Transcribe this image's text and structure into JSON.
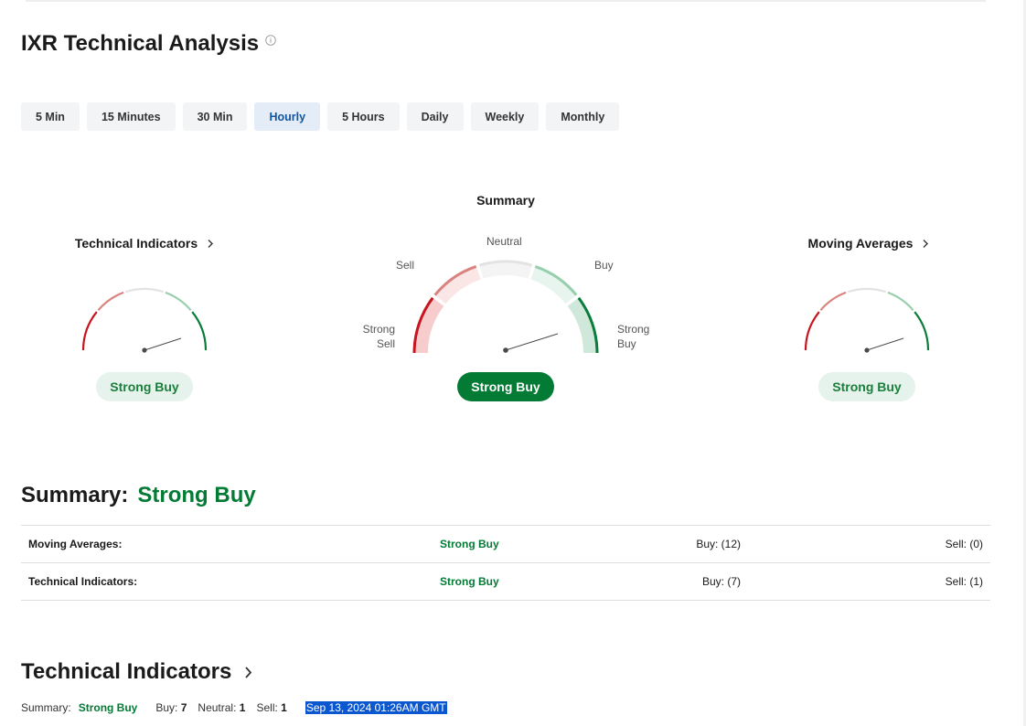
{
  "header": {
    "title": "IXR Technical Analysis",
    "info_icon": "info-icon"
  },
  "timeframes": [
    {
      "label": "5 Min",
      "active": false
    },
    {
      "label": "15 Minutes",
      "active": false
    },
    {
      "label": "30 Min",
      "active": false
    },
    {
      "label": "Hourly",
      "active": true
    },
    {
      "label": "5 Hours",
      "active": false
    },
    {
      "label": "Daily",
      "active": false
    },
    {
      "label": "Weekly",
      "active": false
    },
    {
      "label": "Monthly",
      "active": false
    }
  ],
  "gauges": {
    "technical_indicators": {
      "title": "Technical Indicators",
      "rating": "Strong Buy"
    },
    "summary": {
      "title": "Summary",
      "rating": "Strong Buy",
      "labels": {
        "neutral": "Neutral",
        "sell": "Sell",
        "buy": "Buy",
        "strong_sell_1": "Strong",
        "strong_sell_2": "Sell",
        "strong_buy_1": "Strong",
        "strong_buy_2": "Buy"
      }
    },
    "moving_averages": {
      "title": "Moving Averages",
      "rating": "Strong Buy"
    }
  },
  "summary_section": {
    "label": "Summary:",
    "value": "Strong Buy",
    "rows": [
      {
        "name": "Moving Averages:",
        "rating": "Strong Buy",
        "buy": "Buy: (12)",
        "sell": "Sell: (0)"
      },
      {
        "name": "Technical Indicators:",
        "rating": "Strong Buy",
        "buy": "Buy: (7)",
        "sell": "Sell: (1)"
      }
    ]
  },
  "technical_indicators_section": {
    "title": "Technical Indicators",
    "summary_label": "Summary:",
    "summary_value": "Strong Buy",
    "buy_label": "Buy:",
    "buy_count": "7",
    "neutral_label": "Neutral:",
    "neutral_count": "1",
    "sell_label": "Sell:",
    "sell_count": "1",
    "timestamp": "Sep 13, 2024 01:26AM GMT"
  },
  "colors": {
    "strong_sell": "#c8141e",
    "sell": "#d9837f",
    "neutral": "#e3e3e3",
    "buy": "#95cfae",
    "strong_buy": "#0b7d3a",
    "accent_green": "#037b35",
    "active_tab": "#1256a0"
  }
}
